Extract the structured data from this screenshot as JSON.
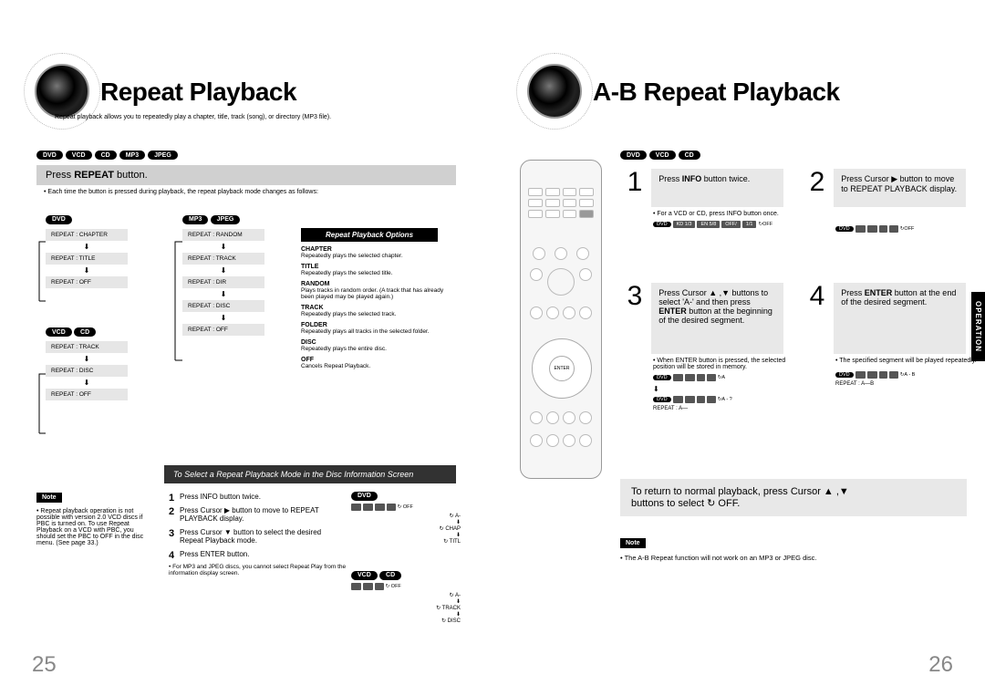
{
  "left": {
    "title": "Repeat Playback",
    "subtitle": "Repeat playback allows you to repeatedly play a chapter, title, track (song), or directory (MP3 file).",
    "formats": [
      "DVD",
      "VCD",
      "CD",
      "MP3",
      "JPEG"
    ],
    "step_bar": "Press REPEAT button.",
    "step_bar_bold": "REPEAT",
    "step_note": "• Each time the button is pressed during playback, the repeat playback mode changes as follows:",
    "flow_dvd_label": "DVD",
    "flow_dvd": [
      "REPEAT : CHAPTER",
      "REPEAT : TITLE",
      "REPEAT : OFF"
    ],
    "flow_vcd_label_a": "VCD",
    "flow_vcd_label_b": "CD",
    "flow_vcd": [
      "REPEAT : TRACK",
      "REPEAT : DISC",
      "REPEAT : OFF"
    ],
    "flow_mp3_label_a": "MP3",
    "flow_mp3_label_b": "JPEG",
    "flow_mp3": [
      "REPEAT : RANDOM",
      "REPEAT : TRACK",
      "REPEAT : DIR",
      "REPEAT : DISC",
      "REPEAT : OFF"
    ],
    "options_header": "Repeat Playback Options",
    "options": [
      {
        "term": "CHAPTER",
        "desc": "Repeatedly plays the selected chapter."
      },
      {
        "term": "TITLE",
        "desc": "Repeatedly plays the selected title."
      },
      {
        "term": "RANDOM",
        "desc": "Plays tracks in random order.\n(A track that has already been played may be played again.)"
      },
      {
        "term": "TRACK",
        "desc": "Repeatedly plays the selected track."
      },
      {
        "term": "FOLDER",
        "desc": "Repeatedly plays all tracks in the selected folder."
      },
      {
        "term": "DISC",
        "desc": "Repeatedly plays the entire disc."
      },
      {
        "term": "OFF",
        "desc": "Cancels Repeat Playback."
      }
    ],
    "dark_banner": "To Select a Repeat Playback Mode in the Disc Information Screen",
    "note_label": "Note",
    "note_text": "• Repeat playback operation is not possible with version 2.0 VCD discs if PBC is turned on. To use Repeat Playback on a VCD with PBC, you should set the PBC to OFF in the disc menu. (See page 33.)",
    "mini_steps": [
      "Press INFO button twice.",
      "Press Cursor ▶ button to move to REPEAT PLAYBACK display.",
      "Press Cursor ▼ button to select the desired Repeat Playback mode.",
      "Press ENTER button."
    ],
    "mini_footer": "• For MP3 and JPEG discs, you cannot select Repeat Play from the information display screen.",
    "osd_dvd_label": "DVD",
    "osd_vcd_label_a": "VCD",
    "osd_vcd_label_b": "CD",
    "osd_right_items": [
      "OFF",
      "A-",
      "CHAP",
      "TITL"
    ],
    "osd_right_items2": [
      "OFF",
      "A-",
      "TRACK",
      "DISC"
    ],
    "page_num": "25"
  },
  "right": {
    "title": "A-B Repeat Playback",
    "formats": [
      "DVD",
      "VCD",
      "CD"
    ],
    "steps": [
      {
        "n": "1",
        "text_pre": "Press ",
        "bold": "INFO",
        "text_post": " button twice."
      },
      {
        "n": "2",
        "text_pre": "Press Cursor ▶ button to move to REPEAT PLAYBACK display.",
        "bold": "",
        "text_post": ""
      },
      {
        "n": "3",
        "text_pre": "Press Cursor ▲ ,▼ buttons to select 'A-' and then press ",
        "bold": "ENTER",
        "text_post": " button at the beginning of the desired segment."
      },
      {
        "n": "4",
        "text_pre": "Press ",
        "bold": "ENTER",
        "text_post": " button at the end of the desired segment."
      }
    ],
    "note1": "• For a VCD or CD, press INFO button once.",
    "note3": "• When ENTER button is pressed, the selected position will be stored in memory.",
    "note4": "• The specified segment will be played repeatedly.",
    "osd1_end": "OFF",
    "osd2_end": "OFF",
    "osd3_end": "A",
    "osd3b_end": "A - ?",
    "osd4_end": "A - B",
    "repeat_a": "REPEAT : A—",
    "repeat_ab": "REPEAT : A—B",
    "side_tab": "OPERATION",
    "return_text_a": "To return to normal playback, press Cursor ▲ ,▼",
    "return_text_b": "buttons to select ↻ OFF.",
    "note_label": "Note",
    "note_text": "• The A-B Repeat function will not work on an MP3 or JPEG disc.",
    "page_num": "26",
    "osd_row": [
      "DVD",
      "KD 1/3",
      "EN 5/8",
      "OFF/",
      "1/1"
    ]
  }
}
